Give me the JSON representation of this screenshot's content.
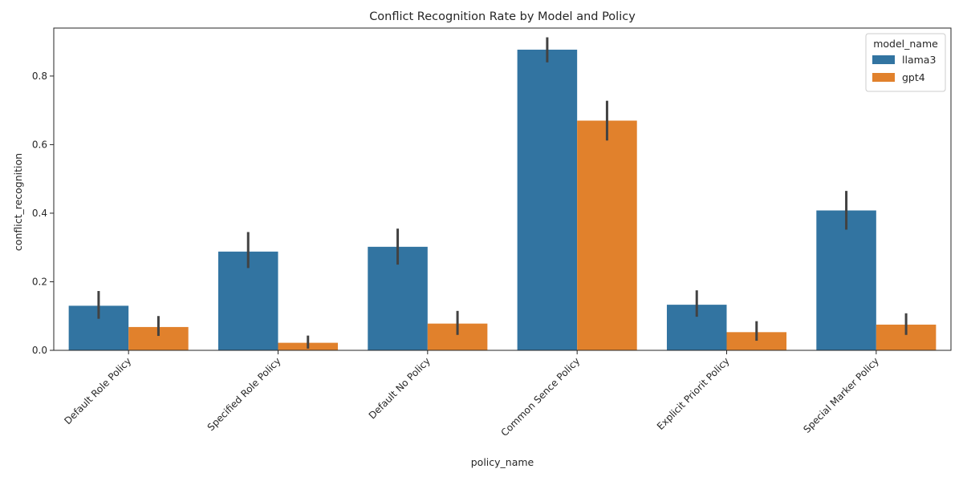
{
  "chart_data": {
    "type": "bar",
    "title": "Conflict Recognition Rate by Model and Policy",
    "xlabel": "policy_name",
    "ylabel": "conflict_recognition",
    "ylim": [
      0,
      0.94
    ],
    "yticks": [
      0.0,
      0.2,
      0.4,
      0.6,
      0.8
    ],
    "ytick_labels": [
      "0.0",
      "0.2",
      "0.4",
      "0.6",
      "0.8"
    ],
    "categories": [
      "Default Role Policy",
      "Specified Role Policy",
      "Default No Policy",
      "Common Sence Policy",
      "Explicit Priorit Policy",
      "Special Marker Policy"
    ],
    "legend": {
      "title": "model_name",
      "position": "top-right"
    },
    "series": [
      {
        "name": "llama3",
        "color": "#3274a1",
        "values": [
          0.13,
          0.288,
          0.302,
          0.877,
          0.133,
          0.408
        ],
        "ci_low": [
          0.092,
          0.24,
          0.25,
          0.84,
          0.098,
          0.352
        ],
        "ci_high": [
          0.173,
          0.345,
          0.355,
          0.913,
          0.175,
          0.465
        ]
      },
      {
        "name": "gpt4",
        "color": "#e1812c",
        "values": [
          0.068,
          0.022,
          0.078,
          0.67,
          0.053,
          0.075
        ],
        "ci_low": [
          0.042,
          0.005,
          0.045,
          0.612,
          0.028,
          0.045
        ],
        "ci_high": [
          0.1,
          0.043,
          0.115,
          0.728,
          0.085,
          0.108
        ]
      }
    ]
  }
}
